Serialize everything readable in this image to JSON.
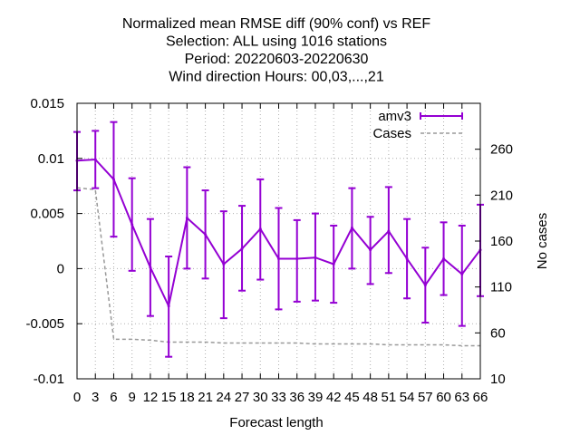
{
  "chart_data": {
    "type": "line",
    "title_lines": [
      "Normalized mean RMSE diff (90% conf) vs REF",
      "Selection: ALL using  1016 stations",
      "Period: 20220603-20220630",
      "Wind direction   Hours:  00,03,...,21"
    ],
    "xlabel": "Forecast length",
    "ylabel": "",
    "y2label": "No cases",
    "x": [
      0,
      3,
      6,
      9,
      12,
      15,
      18,
      21,
      24,
      27,
      30,
      33,
      36,
      39,
      42,
      45,
      48,
      51,
      54,
      57,
      60,
      63,
      66
    ],
    "xlim": [
      0,
      66
    ],
    "ylim": [
      -0.01,
      0.015
    ],
    "y2lim": [
      10,
      310
    ],
    "yticks": [
      "-0.01",
      "-0.005",
      "0",
      "0.005",
      "0.01",
      "0.015"
    ],
    "y2ticks": [
      "10",
      "60",
      "110",
      "160",
      "210",
      "260"
    ],
    "grid": true,
    "legend_position": "top-right",
    "series": [
      {
        "name": "amv3",
        "color": "#9400d3",
        "style": "line+errorbars",
        "values": [
          0.0098,
          0.0099,
          0.0081,
          0.004,
          0.0001,
          -0.0034,
          0.0046,
          0.0031,
          0.0004,
          0.0018,
          0.0036,
          0.0009,
          0.0009,
          0.001,
          0.0004,
          0.0037,
          0.0017,
          0.0034,
          0.0009,
          -0.0015,
          0.0009,
          -0.0005,
          0.0017
        ],
        "err_low": [
          0.0071,
          0.0073,
          0.0029,
          -0.0002,
          -0.0043,
          -0.008,
          0.0,
          -0.0009,
          -0.0045,
          -0.002,
          -0.001,
          -0.0037,
          -0.003,
          -0.0029,
          -0.0031,
          0.0,
          -0.0014,
          -0.0004,
          -0.0027,
          -0.0049,
          -0.0024,
          -0.0052,
          -0.0025
        ],
        "err_high": [
          0.0124,
          0.0125,
          0.0133,
          0.0082,
          0.0045,
          0.0011,
          0.0092,
          0.0071,
          0.0052,
          0.0057,
          0.0081,
          0.0055,
          0.0044,
          0.005,
          0.0039,
          0.0073,
          0.0047,
          0.0074,
          0.0045,
          0.0019,
          0.0042,
          0.0039,
          0.0058
        ]
      },
      {
        "name": "Cases",
        "color": "#999999",
        "style": "dashed",
        "axis": "y2",
        "values": [
          218,
          216,
          53,
          53,
          52,
          50,
          50,
          50,
          49,
          49,
          49,
          49,
          49,
          48,
          48,
          48,
          48,
          47,
          47,
          47,
          47,
          46,
          46
        ]
      }
    ]
  }
}
